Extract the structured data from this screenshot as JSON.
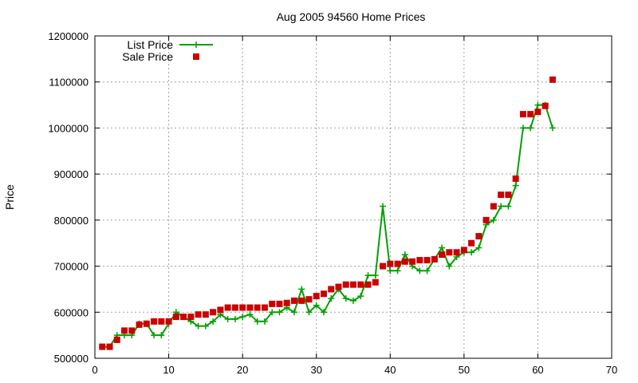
{
  "chart_data": {
    "type": "line",
    "title": "Aug 2005 94560 Home Prices",
    "xlabel": "",
    "ylabel": "Price",
    "xlim": [
      0,
      70
    ],
    "ylim": [
      500000,
      1200000
    ],
    "x_ticks": [
      0,
      10,
      20,
      30,
      40,
      50,
      60,
      70
    ],
    "y_ticks": [
      500000,
      600000,
      700000,
      800000,
      900000,
      1000000,
      1100000,
      1200000
    ],
    "grid": true,
    "legend_position": "top-left",
    "series": [
      {
        "name": "List Price",
        "style": "line-with-plus-markers",
        "color": "#00a000",
        "x": [
          1,
          2,
          3,
          4,
          5,
          6,
          7,
          8,
          9,
          10,
          11,
          12,
          13,
          14,
          15,
          16,
          17,
          18,
          19,
          20,
          21,
          22,
          23,
          24,
          25,
          26,
          27,
          28,
          29,
          30,
          31,
          32,
          33,
          34,
          35,
          36,
          37,
          38,
          39,
          40,
          41,
          42,
          43,
          44,
          45,
          46,
          47,
          48,
          49,
          50,
          51,
          52,
          53,
          54,
          55,
          56,
          57,
          58,
          59,
          60,
          61,
          62
        ],
        "values": [
          525000,
          525000,
          550000,
          550000,
          550000,
          575000,
          575000,
          550000,
          550000,
          575000,
          600000,
          590000,
          580000,
          570000,
          570000,
          580000,
          595000,
          585000,
          585000,
          590000,
          595000,
          580000,
          580000,
          600000,
          600000,
          610000,
          600000,
          650000,
          600000,
          615000,
          600000,
          630000,
          650000,
          630000,
          625000,
          635000,
          680000,
          680000,
          830000,
          690000,
          690000,
          725000,
          700000,
          690000,
          690000,
          715000,
          740000,
          700000,
          720000,
          730000,
          730000,
          740000,
          790000,
          800000,
          830000,
          830000,
          875000,
          1000000,
          1000000,
          1050000,
          1050000,
          1000000
        ]
      },
      {
        "name": "Sale Price",
        "style": "square-markers",
        "color": "#cc0000",
        "x": [
          1,
          2,
          3,
          4,
          5,
          6,
          7,
          8,
          9,
          10,
          11,
          12,
          13,
          14,
          15,
          16,
          17,
          18,
          19,
          20,
          21,
          22,
          23,
          24,
          25,
          26,
          27,
          28,
          29,
          30,
          31,
          32,
          33,
          34,
          35,
          36,
          37,
          38,
          39,
          40,
          41,
          42,
          43,
          44,
          45,
          46,
          47,
          48,
          49,
          50,
          51,
          52,
          53,
          54,
          55,
          56,
          57,
          58,
          59,
          60,
          61,
          62
        ],
        "values": [
          525000,
          525000,
          540000,
          560000,
          560000,
          573000,
          575000,
          580000,
          580000,
          580000,
          590000,
          590000,
          590000,
          595000,
          595000,
          600000,
          605000,
          610000,
          610000,
          610000,
          610000,
          610000,
          610000,
          618000,
          618000,
          620000,
          625000,
          625000,
          628000,
          635000,
          640000,
          650000,
          655000,
          660000,
          660000,
          660000,
          660000,
          665000,
          700000,
          705000,
          705000,
          710000,
          710000,
          713000,
          713000,
          715000,
          725000,
          730000,
          730000,
          735000,
          750000,
          765000,
          800000,
          830000,
          855000,
          855000,
          890000,
          1030000,
          1030000,
          1035000,
          1048000,
          1105000
        ]
      }
    ]
  }
}
